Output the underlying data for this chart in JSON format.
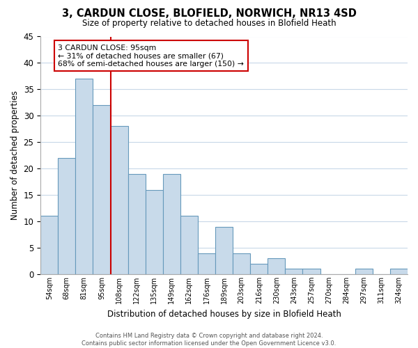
{
  "title": "3, CARDUN CLOSE, BLOFIELD, NORWICH, NR13 4SD",
  "subtitle": "Size of property relative to detached houses in Blofield Heath",
  "xlabel": "Distribution of detached houses by size in Blofield Heath",
  "ylabel": "Number of detached properties",
  "bin_labels": [
    "54sqm",
    "68sqm",
    "81sqm",
    "95sqm",
    "108sqm",
    "122sqm",
    "135sqm",
    "149sqm",
    "162sqm",
    "176sqm",
    "189sqm",
    "203sqm",
    "216sqm",
    "230sqm",
    "243sqm",
    "257sqm",
    "270sqm",
    "284sqm",
    "297sqm",
    "311sqm",
    "324sqm"
  ],
  "bar_heights": [
    11,
    22,
    37,
    32,
    28,
    19,
    16,
    19,
    11,
    4,
    9,
    4,
    2,
    3,
    1,
    1,
    0,
    0,
    1,
    0,
    1
  ],
  "bar_color": "#c8daea",
  "bar_edge_color": "#6699bb",
  "highlight_label": "95sqm",
  "highlight_line_color": "#cc0000",
  "ylim": [
    0,
    45
  ],
  "yticks": [
    0,
    5,
    10,
    15,
    20,
    25,
    30,
    35,
    40,
    45
  ],
  "annotation_title": "3 CARDUN CLOSE: 95sqm",
  "annotation_line1": "← 31% of detached houses are smaller (67)",
  "annotation_line2": "68% of semi-detached houses are larger (150) →",
  "annotation_box_color": "#ffffff",
  "annotation_box_edge": "#cc0000",
  "footer_line1": "Contains HM Land Registry data © Crown copyright and database right 2024.",
  "footer_line2": "Contains public sector information licensed under the Open Government Licence v3.0.",
  "background_color": "#ffffff",
  "grid_color": "#c8d8e8"
}
